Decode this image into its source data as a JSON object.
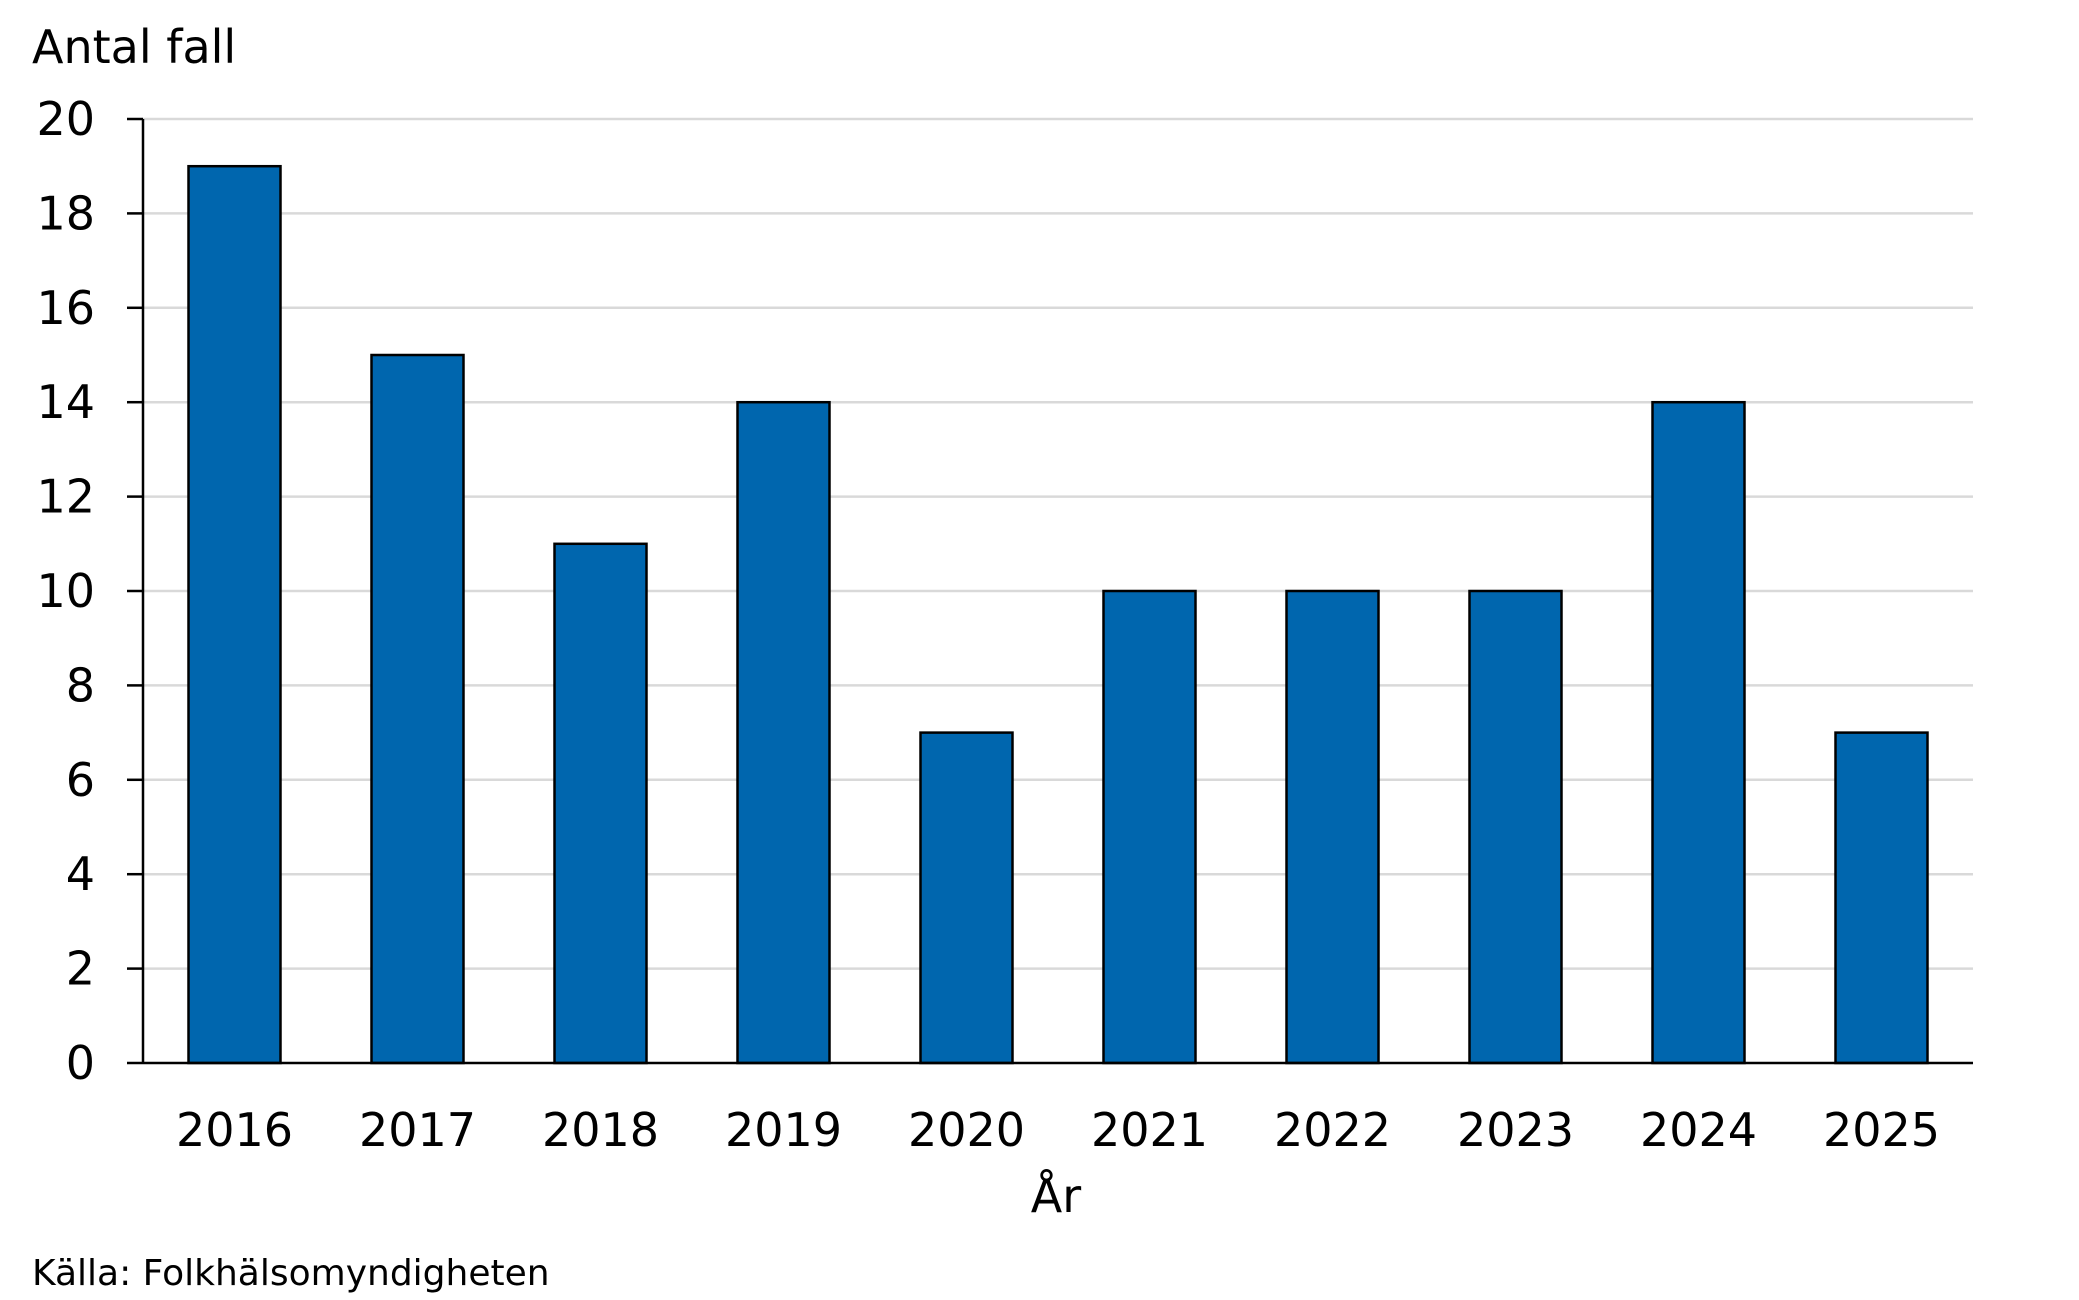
{
  "chart_data": {
    "type": "bar",
    "title": "",
    "ylabel": "Antal fall",
    "xlabel": "År",
    "categories": [
      "2016",
      "2017",
      "2018",
      "2019",
      "2020",
      "2021",
      "2022",
      "2023",
      "2024",
      "2025"
    ],
    "values": [
      19,
      15,
      11,
      14,
      7,
      10,
      10,
      10,
      14,
      7
    ],
    "ylim": [
      0,
      20
    ],
    "yticks": [
      0,
      2,
      4,
      6,
      8,
      10,
      12,
      14,
      16,
      18,
      20
    ],
    "grid": true,
    "bar_color": "#0066AE",
    "grid_color": "#D9D9D9"
  },
  "source": "Källa: Folkhälsomyndigheten"
}
